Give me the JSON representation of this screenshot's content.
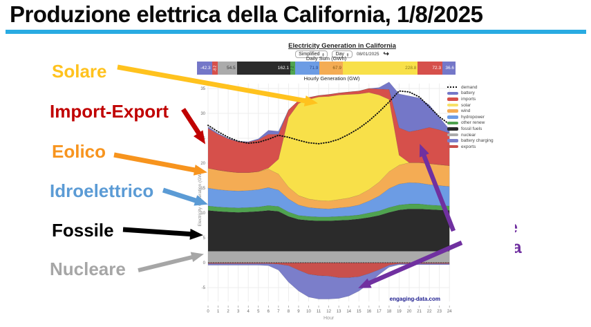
{
  "slide": {
    "title": "Produzione elettrica della California, 1/8/2025",
    "underline_color": "#29ABE2",
    "annotations": {
      "left": [
        {
          "label": "Solare",
          "color": "#FFC21E"
        },
        {
          "label": "Import-Export",
          "color": "#C00000"
        },
        {
          "label": "Eolico",
          "color": "#F7941E"
        },
        {
          "label": "Idroelettrico",
          "color": "#5B9BD5"
        },
        {
          "label": "Fossile",
          "color": "#000000"
        },
        {
          "label": "Nucleare",
          "color": "#A6A6A6"
        }
      ],
      "right": {
        "lines": [
          "Batterie",
          "su scala",
          "Di Rete"
        ],
        "color": "#7030A0"
      },
      "markers": [
        {
          "text": "1"
        },
        {
          "text": "2"
        }
      ],
      "marker_color": "#472F91"
    }
  },
  "widget": {
    "title": "Electricity Generation in California",
    "controls": {
      "view_select": "Simplified",
      "period_select": "Day",
      "date": "08/01/2025",
      "share_icon": "curved-share-arrow"
    },
    "credit": "engaging-data.com"
  },
  "chart_data": [
    {
      "type": "area",
      "title": "Hourly Generation (GW)",
      "xlabel": "Hour",
      "ylabel": "Electricity Generation (GW)",
      "x": [
        0,
        1,
        2,
        3,
        4,
        5,
        6,
        7,
        8,
        9,
        10,
        11,
        12,
        13,
        14,
        15,
        16,
        17,
        18,
        19,
        20,
        21,
        22,
        23,
        24
      ],
      "ylim": [
        -8,
        36
      ],
      "yticks": [
        -5,
        0,
        5,
        10,
        15,
        20,
        25,
        30,
        35
      ],
      "grid": true,
      "legend_position": "top-right",
      "series": [
        {
          "name": "nuclear",
          "stack": "pos",
          "color": "#ABABAB",
          "values": [
            2.3,
            2.3,
            2.3,
            2.3,
            2.3,
            2.3,
            2.3,
            2.3,
            2.3,
            2.3,
            2.3,
            2.3,
            2.3,
            2.3,
            2.3,
            2.3,
            2.3,
            2.3,
            2.3,
            2.3,
            2.3,
            2.3,
            2.3,
            2.3,
            2.3
          ]
        },
        {
          "name": "fossil fuels",
          "stack": "pos",
          "color": "#2B2B2B",
          "values": [
            8.2,
            8.0,
            7.9,
            7.8,
            7.9,
            8.0,
            8.2,
            8.0,
            7.0,
            6.4,
            6.2,
            6.1,
            6.1,
            6.2,
            6.3,
            6.5,
            6.8,
            7.2,
            7.8,
            8.3,
            8.5,
            8.5,
            8.4,
            8.3,
            8.2
          ]
        },
        {
          "name": "other renew",
          "stack": "pos",
          "color": "#4FA34F",
          "values": [
            0.9,
            0.9,
            0.9,
            0.9,
            0.9,
            0.9,
            1.0,
            1.0,
            0.9,
            0.8,
            0.8,
            0.8,
            0.8,
            0.8,
            0.8,
            0.8,
            0.9,
            0.9,
            1.0,
            1.0,
            1.0,
            1.0,
            0.9,
            0.9,
            0.9
          ]
        },
        {
          "name": "hydropower",
          "stack": "pos",
          "color": "#6C9CE4",
          "values": [
            3.6,
            3.5,
            3.4,
            3.4,
            3.4,
            3.5,
            3.6,
            3.3,
            2.6,
            2.1,
            1.8,
            1.7,
            1.6,
            1.7,
            1.8,
            2.0,
            2.4,
            3.0,
            3.8,
            4.2,
            4.3,
            4.2,
            4.1,
            4.0,
            3.9
          ]
        },
        {
          "name": "wind",
          "stack": "pos",
          "color": "#F4AC54",
          "values": [
            4.0,
            3.9,
            3.8,
            3.7,
            3.6,
            3.6,
            3.7,
            3.2,
            2.4,
            1.9,
            1.7,
            1.6,
            1.6,
            1.7,
            1.8,
            2.0,
            2.3,
            2.8,
            3.4,
            3.8,
            4.0,
            4.1,
            4.2,
            4.2,
            4.2
          ]
        },
        {
          "name": "solar",
          "stack": "pos",
          "color": "#F8E049",
          "values": [
            0,
            0,
            0,
            0,
            0,
            0,
            0.2,
            3.0,
            14.0,
            18.5,
            20.0,
            20.8,
            21.0,
            21.0,
            20.8,
            20.3,
            19.5,
            17.5,
            14.5,
            2.0,
            0,
            0,
            0,
            0,
            0
          ]
        },
        {
          "name": "imports",
          "stack": "pos",
          "color": "#D6504B",
          "values": [
            8.0,
            7.2,
            6.6,
            6.2,
            6.1,
            6.4,
            6.8,
            5.0,
            1.5,
            0.6,
            0.4,
            0.3,
            0.4,
            0.4,
            0.5,
            0.6,
            0.8,
            1.2,
            2.0,
            5.5,
            6.2,
            6.6,
            7.3,
            7.0,
            6.5
          ]
        },
        {
          "name": "battery",
          "stack": "pos",
          "color": "#7477C8",
          "values": [
            0.3,
            0.2,
            0.1,
            0.1,
            0.1,
            0.2,
            0.8,
            0.6,
            0,
            0,
            0,
            0,
            0,
            0,
            0,
            0,
            0,
            0.3,
            1.5,
            6.8,
            7.2,
            6.4,
            4.5,
            2.5,
            0.8
          ]
        },
        {
          "name": "exports",
          "stack": "neg",
          "color": "#C9504C",
          "values": [
            -0.2,
            -0.2,
            -0.2,
            -0.2,
            -0.2,
            -0.2,
            -0.2,
            -0.3,
            -0.6,
            -1.5,
            -2.3,
            -2.6,
            -2.7,
            -3.0,
            -3.0,
            -2.8,
            -2.2,
            -1.4,
            -0.5,
            -0.2,
            -0.2,
            -0.2,
            -0.2,
            -0.2,
            -0.2
          ]
        },
        {
          "name": "battery charging",
          "stack": "neg",
          "color": "#7B7ECA",
          "values": [
            -0.3,
            -0.3,
            -0.3,
            -0.3,
            -0.3,
            -0.3,
            -0.4,
            -1.2,
            -3.3,
            -4.2,
            -4.6,
            -4.7,
            -4.6,
            -4.2,
            -3.7,
            -2.9,
            -2.0,
            -1.0,
            -0.4,
            -0.2,
            -0.2,
            -0.2,
            -0.2,
            -0.2,
            -0.2
          ]
        }
      ],
      "demand": {
        "name": "demand",
        "style": "dotted",
        "color": "#111111",
        "values": [
          27.6,
          26.3,
          25.2,
          24.4,
          24.0,
          24.2,
          24.8,
          25.6,
          25.2,
          24.6,
          24.1,
          23.9,
          24.2,
          24.8,
          25.8,
          27.0,
          28.5,
          30.3,
          32.3,
          34.5,
          34.3,
          33.3,
          31.3,
          29.3,
          27.8
        ]
      },
      "legend": [
        {
          "label": "demand",
          "type": "dotted",
          "color": "#111111"
        },
        {
          "label": "battery",
          "color": "#7477C8"
        },
        {
          "label": "imports",
          "color": "#D6504B"
        },
        {
          "label": "solar",
          "color": "#F7E167"
        },
        {
          "label": "wind",
          "color": "#F4AC54"
        },
        {
          "label": "hydropower",
          "color": "#6C9CE4"
        },
        {
          "label": "other renew",
          "color": "#4FA34F"
        },
        {
          "label": "fossil fuels",
          "color": "#2B2B2B"
        },
        {
          "label": "nuclear",
          "color": "#ABABAB"
        },
        {
          "label": "battery charging",
          "color": "#7B7ECA"
        },
        {
          "label": "exports",
          "color": "#C9504C"
        }
      ]
    },
    {
      "type": "bar",
      "title": "Daily Sum (GWh)",
      "orientation": "horizontal-stacked",
      "units": "GWh",
      "segments": [
        {
          "name": "battery charging",
          "value": -42.3,
          "color": "#7477C8",
          "text": "#ffffff"
        },
        {
          "name": "exports",
          "value": -8.2,
          "color": "#D6504B",
          "text": "#ffffff",
          "rotate": true
        },
        {
          "name": "nuclear",
          "value": 54.5,
          "color": "#ABABAB",
          "text": "#333333"
        },
        {
          "name": "fossil fuels",
          "value": 162.1,
          "color": "#2B2B2B",
          "text": "#ffffff"
        },
        {
          "name": "other renew",
          "value": 7.2,
          "color": "#4FA34F",
          "text": "#14421a",
          "rotate": true
        },
        {
          "name": "hydropower",
          "value": 71.9,
          "color": "#6C9CE4",
          "text": "#23468c"
        },
        {
          "name": "wind",
          "value": 67.9,
          "color": "#F4AC54",
          "text": "#7a5210"
        },
        {
          "name": "solar",
          "value": 228.8,
          "color": "#F8E049",
          "text": "#8a7a1a"
        },
        {
          "name": "imports",
          "value": 72.3,
          "color": "#D6504B",
          "text": "#ffffff"
        },
        {
          "name": "battery",
          "value": 36.6,
          "color": "#7477C8",
          "text": "#ffffff"
        }
      ]
    }
  ]
}
